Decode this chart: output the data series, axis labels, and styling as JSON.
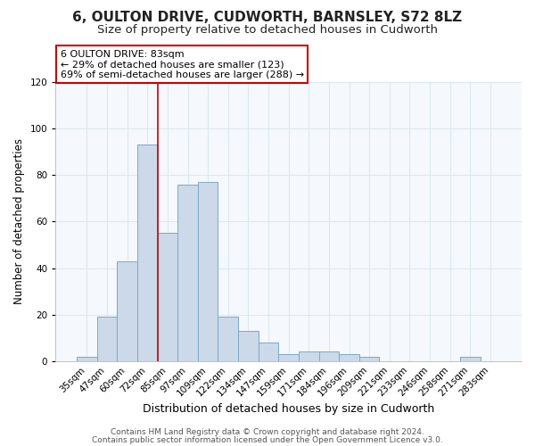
{
  "title": "6, OULTON DRIVE, CUDWORTH, BARNSLEY, S72 8LZ",
  "subtitle": "Size of property relative to detached houses in Cudworth",
  "xlabel": "Distribution of detached houses by size in Cudworth",
  "ylabel": "Number of detached properties",
  "bar_labels": [
    "35sqm",
    "47sqm",
    "60sqm",
    "72sqm",
    "85sqm",
    "97sqm",
    "109sqm",
    "122sqm",
    "134sqm",
    "147sqm",
    "159sqm",
    "171sqm",
    "184sqm",
    "196sqm",
    "209sqm",
    "221sqm",
    "233sqm",
    "246sqm",
    "258sqm",
    "271sqm",
    "283sqm"
  ],
  "bar_heights": [
    2,
    19,
    43,
    93,
    55,
    76,
    77,
    19,
    13,
    8,
    3,
    4,
    4,
    3,
    2,
    0,
    0,
    0,
    0,
    2,
    0
  ],
  "bar_color": "#ccd9e8",
  "bar_edge_color": "#7aaac8",
  "ylim": [
    0,
    120
  ],
  "yticks": [
    0,
    20,
    40,
    60,
    80,
    100,
    120
  ],
  "vline_position": 3.5,
  "vline_color": "#cc0000",
  "annotation_title": "6 OULTON DRIVE: 83sqm",
  "annotation_line1": "← 29% of detached houses are smaller (123)",
  "annotation_line2": "69% of semi-detached houses are larger (288) →",
  "annotation_box_facecolor": "#ffffff",
  "annotation_box_edgecolor": "#cc0000",
  "footer1": "Contains HM Land Registry data © Crown copyright and database right 2024.",
  "footer2": "Contains public sector information licensed under the Open Government Licence v3.0.",
  "plot_bg_color": "#f5f8fc",
  "fig_bg_color": "#ffffff",
  "grid_color": "#dce8f0",
  "title_fontsize": 11,
  "subtitle_fontsize": 9.5,
  "xlabel_fontsize": 9,
  "ylabel_fontsize": 8.5,
  "tick_fontsize": 7.5,
  "annotation_fontsize": 8,
  "footer_fontsize": 6.5
}
